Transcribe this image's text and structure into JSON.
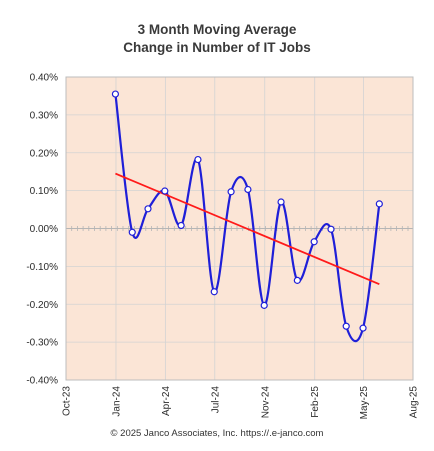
{
  "title_line1": "3 Month Moving Average",
  "title_line2": "Change in Number of IT Jobs",
  "footer": "© 2025 Janco Associates, Inc. https://.e-janco.com",
  "colors": {
    "plot_background": "#fbe5d6",
    "series_line": "#1f1fd8",
    "trend_line": "#ff1a1a",
    "grid": "#d3d3d3",
    "axis_text": "#2b2b2b",
    "marker_fill": "#ffffff"
  },
  "chart_data": {
    "type": "line",
    "title": "3 Month Moving Average Change in Number of IT Jobs",
    "xlabel": "",
    "ylabel": "",
    "x_ticks": [
      "Oct-23",
      "Jan-24",
      "Apr-24",
      "Jul-24",
      "Nov-24",
      "Feb-25",
      "May-25",
      "Aug-25"
    ],
    "x_tick_dates": [
      "2023-10-01",
      "2024-01-01",
      "2024-04-01",
      "2024-07-01",
      "2024-10-01",
      "2025-01-01",
      "2025-04-01",
      "2025-07-01"
    ],
    "y_ticks": [
      "0.40%",
      "0.30%",
      "0.20%",
      "0.10%",
      "0.00%",
      "-0.10%",
      "-0.20%",
      "-0.30%",
      "-0.40%"
    ],
    "ylim": [
      -0.4,
      0.4
    ],
    "grid": true,
    "series": [
      {
        "x": [
          "2023-12-31",
          "2024-01-31",
          "2024-02-29",
          "2024-03-31",
          "2024-04-30",
          "2024-05-31",
          "2024-06-30",
          "2024-07-31",
          "2024-08-31",
          "2024-09-30",
          "2024-10-31",
          "2024-11-30",
          "2024-12-31",
          "2025-01-31",
          "2025-02-28",
          "2025-03-31",
          "2025-04-30"
        ],
        "values": [
          0.355,
          -0.01,
          0.052,
          0.099,
          0.008,
          0.182,
          -0.167,
          0.097,
          0.103,
          -0.203,
          0.07,
          -0.137,
          -0.035,
          -0.002,
          -0.258,
          -0.263,
          0.065
        ]
      }
    ],
    "trendline": {
      "x": [
        "2023-12-31",
        "2025-04-30"
      ],
      "values": [
        0.145,
        -0.147
      ]
    }
  }
}
